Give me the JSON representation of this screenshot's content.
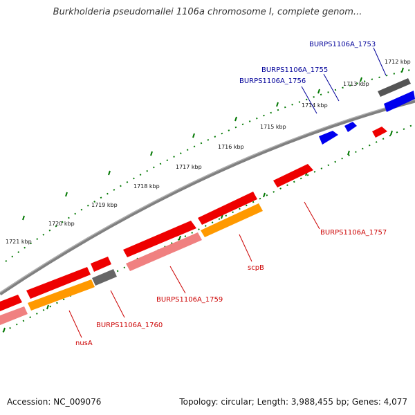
{
  "title": "Burkholderia pseudomallei 1106a chromosome I, complete genom...",
  "footer": {
    "accession": "Accession: NC_009076",
    "info": "Topology: circular; Length: 3,988,455 bp; Genes: 4,077"
  },
  "colors": {
    "forward_gene": "#ee0000",
    "pseudo_gene": "#f08080",
    "rna_gene": "#ff9900",
    "other_gene": "#666666",
    "blue_gene": "#0000ee",
    "red_label": "#cc0000",
    "blue_label": "#000099",
    "tick": "#007700",
    "backbone": "#808080"
  },
  "ticks": [
    "1712 kbp",
    "1713 kbp",
    "1714 kbp",
    "1715 kbp",
    "1716 kbp",
    "1717 kbp",
    "1718 kbp",
    "1719 kbp",
    "1720 kbp",
    "1721 kbp"
  ],
  "labels": {
    "l1753": "BURPS1106A_1753",
    "l1755": "BURPS1106A_1755",
    "l1756": "BURPS1106A_1756",
    "l1757": "BURPS1106A_1757",
    "scpB": "scpB",
    "l1759": "BURPS1106A_1759",
    "l1760": "BURPS1106A_1760",
    "nusA": "nusA"
  }
}
